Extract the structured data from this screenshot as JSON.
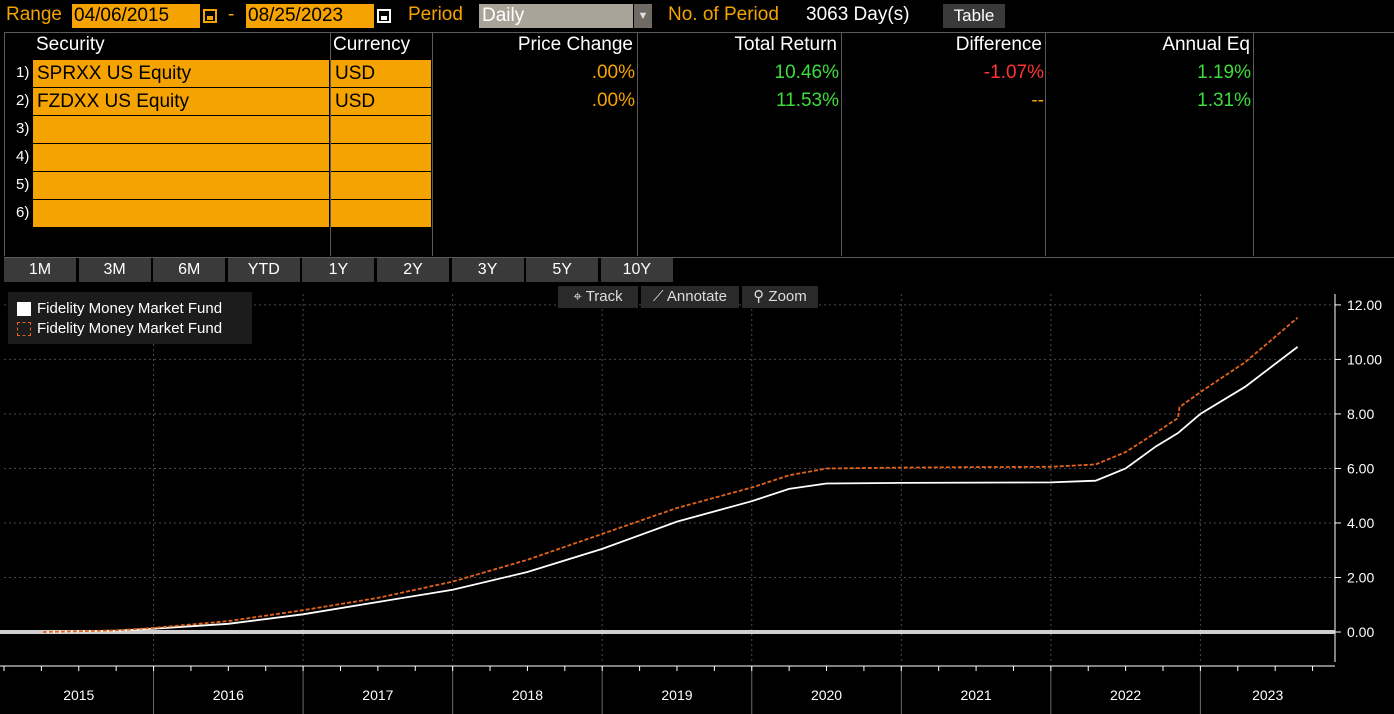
{
  "top": {
    "range_label": "Range",
    "start_date": "04/06/2015",
    "separator": "-",
    "end_date": "08/25/2023",
    "period_label": "Period",
    "period_value": "Daily",
    "periods_label": "No. of Period",
    "periods_value": "3063 Day(s)",
    "table_button": "Table"
  },
  "table": {
    "headers": {
      "security": "Security",
      "currency": "Currency",
      "price_change": "Price Change",
      "total_return": "Total Return",
      "difference": "Difference",
      "annual_eq": "Annual Eq"
    },
    "rows": [
      {
        "num": "1)",
        "security": "SPRXX US Equity",
        "currency": "USD",
        "price_change": ".00%",
        "total_return": "10.46%",
        "difference": "-1.07%",
        "annual_eq": "1.19%"
      },
      {
        "num": "2)",
        "security": "FZDXX US Equity",
        "currency": "USD",
        "price_change": ".00%",
        "total_return": "11.53%",
        "difference": "--",
        "annual_eq": "1.31%"
      },
      {
        "num": "3)",
        "security": "",
        "currency": "",
        "price_change": "",
        "total_return": "",
        "difference": "",
        "annual_eq": ""
      },
      {
        "num": "4)",
        "security": "",
        "currency": "",
        "price_change": "",
        "total_return": "",
        "difference": "",
        "annual_eq": ""
      },
      {
        "num": "5)",
        "security": "",
        "currency": "",
        "price_change": "",
        "total_return": "",
        "difference": "",
        "annual_eq": ""
      },
      {
        "num": "6)",
        "security": "",
        "currency": "",
        "price_change": "",
        "total_return": "",
        "difference": "",
        "annual_eq": ""
      }
    ]
  },
  "range_buttons": [
    "1M",
    "3M",
    "6M",
    "YTD",
    "1Y",
    "2Y",
    "3Y",
    "5Y",
    "10Y"
  ],
  "tools": {
    "track": "Track",
    "annotate": "Annotate",
    "zoom": "Zoom"
  },
  "colors": {
    "accent": "#f5a300",
    "positive": "#3ddc3d",
    "negative": "#ff3333",
    "series1": "#ffffff",
    "series2": "#e2641a"
  },
  "chart_data": {
    "type": "line",
    "title": "",
    "xlabel": "",
    "ylabel": "",
    "legend_position": "top-left",
    "grid": true,
    "ylim": [
      -1.1,
      12.4
    ],
    "xlim": [
      2015.0,
      2023.9
    ],
    "yticks": [
      "12.00",
      "10.00",
      "8.00",
      "6.00",
      "4.00",
      "2.00",
      "0.00"
    ],
    "ytick_values": [
      12,
      10,
      8,
      6,
      4,
      2,
      0
    ],
    "xticks": [
      "2015",
      "2016",
      "2017",
      "2018",
      "2019",
      "2020",
      "2021",
      "2022",
      "2023"
    ],
    "series": [
      {
        "name": "Fidelity Money Market Fund",
        "style": "solid",
        "color": "#ffffff",
        "x": [
          2015.26,
          2015.75,
          2016.0,
          2016.5,
          2017.0,
          2017.5,
          2018.0,
          2018.5,
          2019.0,
          2019.5,
          2020.0,
          2020.25,
          2020.5,
          2021.0,
          2021.5,
          2022.0,
          2022.3,
          2022.5,
          2022.7,
          2022.85,
          2023.0,
          2023.3,
          2023.65
        ],
        "values": [
          0.0,
          0.05,
          0.12,
          0.3,
          0.65,
          1.1,
          1.55,
          2.2,
          3.05,
          4.05,
          4.8,
          5.25,
          5.45,
          5.47,
          5.48,
          5.49,
          5.55,
          6.0,
          6.8,
          7.3,
          8.0,
          9.0,
          10.46
        ]
      },
      {
        "name": "Fidelity Money Market Fund",
        "style": "dashed",
        "color": "#e2641a",
        "x": [
          2015.26,
          2015.75,
          2016.0,
          2016.5,
          2017.0,
          2017.5,
          2018.0,
          2018.5,
          2019.0,
          2019.5,
          2020.0,
          2020.25,
          2020.5,
          2021.0,
          2021.5,
          2022.0,
          2022.3,
          2022.5,
          2022.7,
          2022.85,
          2022.86,
          2023.0,
          2023.3,
          2023.65
        ],
        "values": [
          0.0,
          0.06,
          0.15,
          0.4,
          0.8,
          1.25,
          1.85,
          2.65,
          3.6,
          4.55,
          5.3,
          5.75,
          6.0,
          6.03,
          6.05,
          6.06,
          6.15,
          6.6,
          7.3,
          7.85,
          8.25,
          8.8,
          9.9,
          11.53
        ]
      }
    ]
  }
}
